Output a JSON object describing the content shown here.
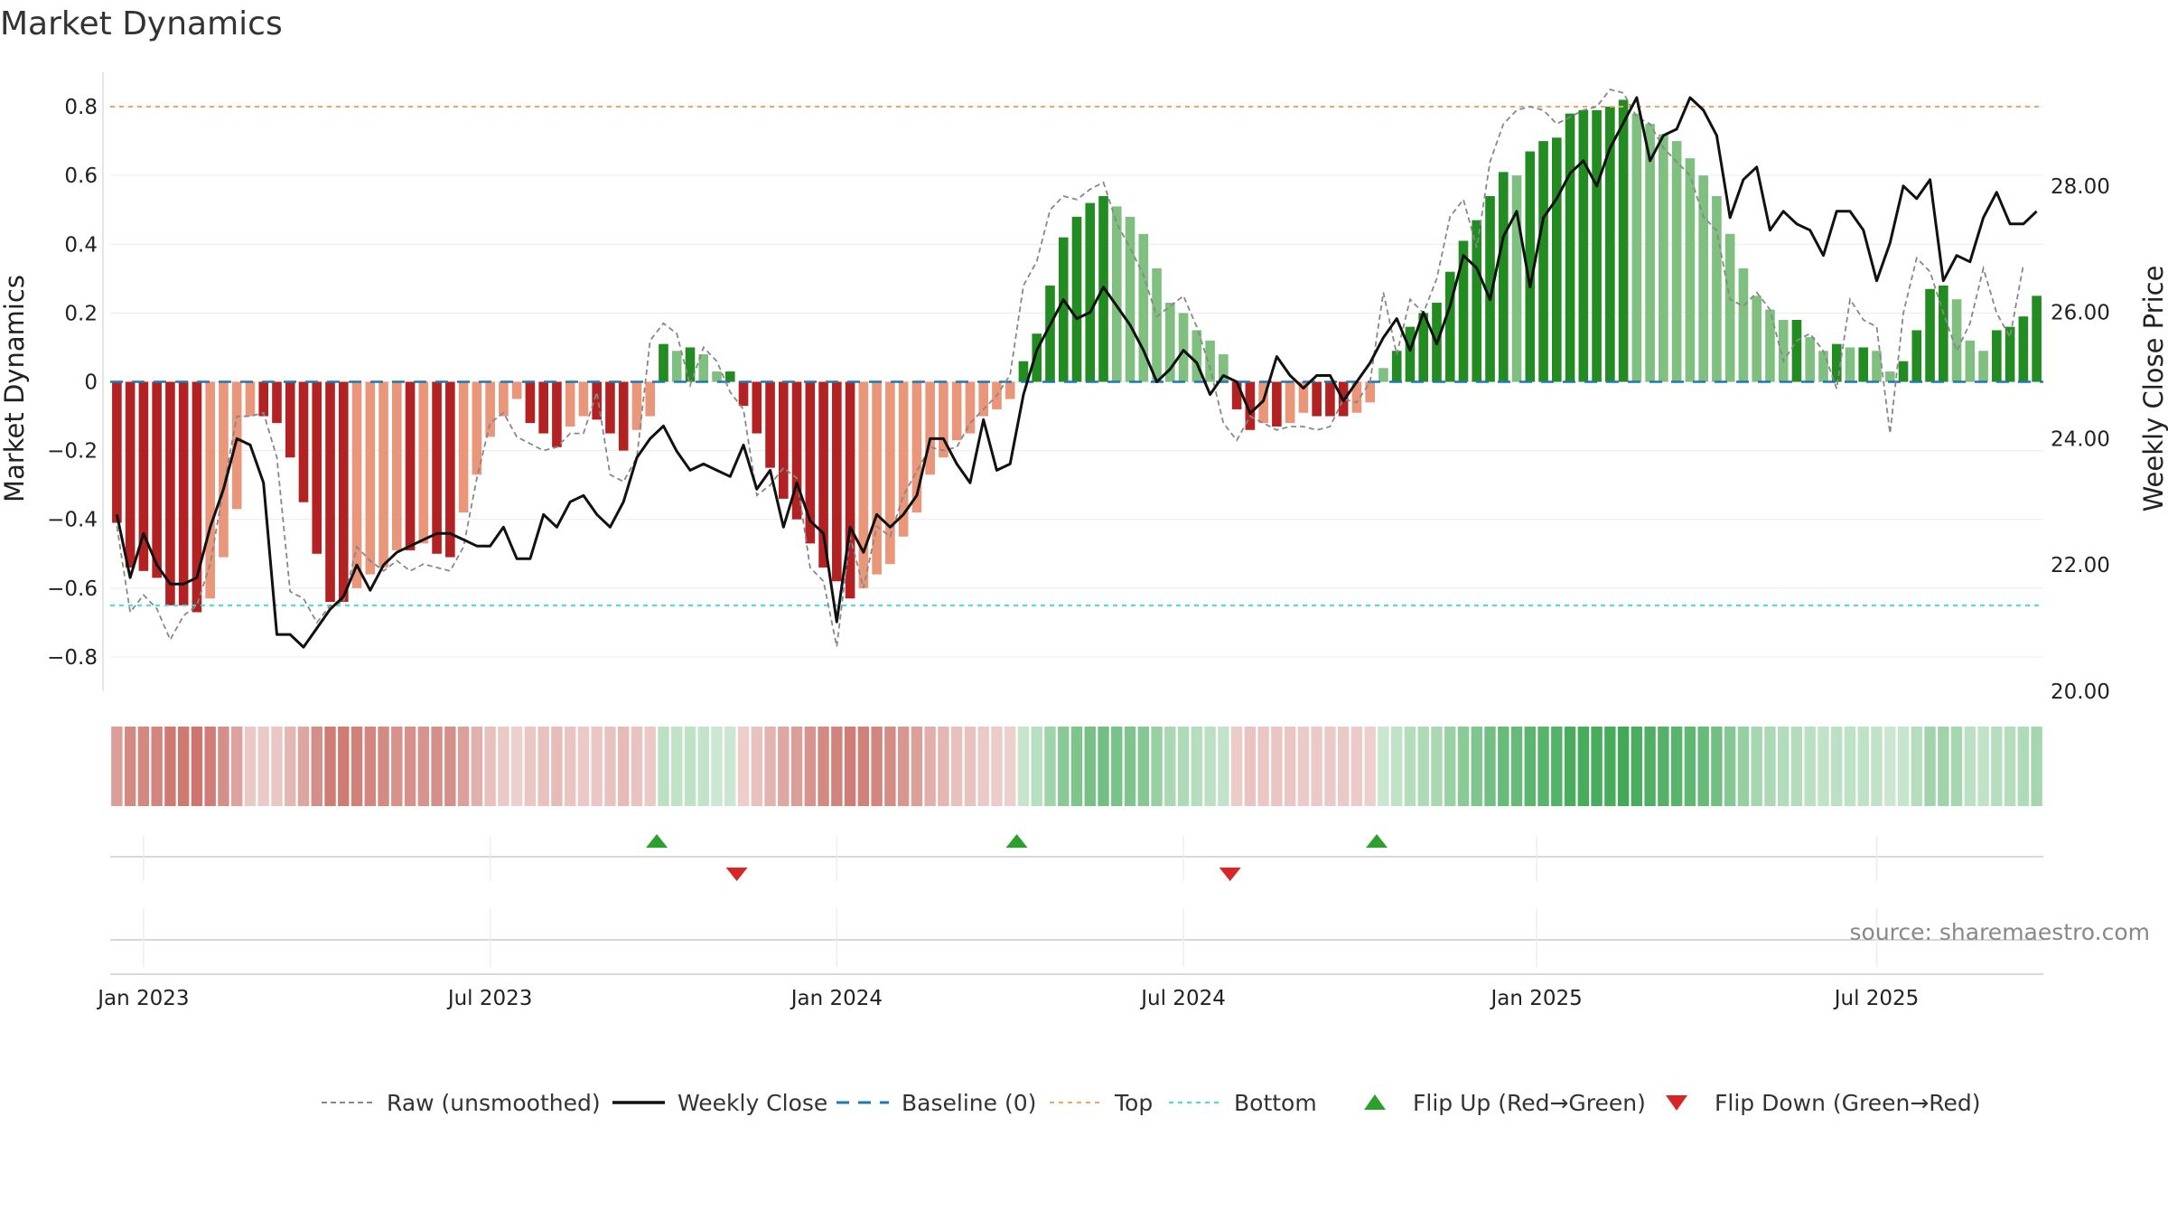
{
  "title": "Market Dynamics",
  "source": "source: sharemaestro.com",
  "chart_data": {
    "type": "bar",
    "title": "Market Dynamics",
    "ylabel_left": "Market Dynamics",
    "ylabel_right": "Weekly Close Price",
    "ylim_left": [
      -0.9,
      0.9
    ],
    "ylim_right": [
      20.0,
      29.8
    ],
    "y_ticks_left": [
      {
        "v": 0.8,
        "label": "0.8"
      },
      {
        "v": 0.6,
        "label": "0.6"
      },
      {
        "v": 0.4,
        "label": "0.4"
      },
      {
        "v": 0.2,
        "label": "0.2"
      },
      {
        "v": 0,
        "label": "0"
      },
      {
        "v": -0.2,
        "label": "−0.2"
      },
      {
        "v": -0.4,
        "label": "−0.4"
      },
      {
        "v": -0.6,
        "label": "−0.6"
      },
      {
        "v": -0.8,
        "label": "−0.8"
      }
    ],
    "y_ticks_right": [
      {
        "v": 28,
        "label": "28.00"
      },
      {
        "v": 26,
        "label": "26.00"
      },
      {
        "v": 24,
        "label": "24.00"
      },
      {
        "v": 22,
        "label": "22.00"
      },
      {
        "v": 20,
        "label": "20.00"
      }
    ],
    "x_ticks": [
      {
        "w": 2.5,
        "label": "Jan 2023"
      },
      {
        "w": 28.5,
        "label": "Jul 2023"
      },
      {
        "w": 54.5,
        "label": "Jan 2024"
      },
      {
        "w": 80.5,
        "label": "Jul 2024"
      },
      {
        "w": 107,
        "label": "Jan 2025"
      },
      {
        "w": 132.5,
        "label": "Jul 2025"
      }
    ],
    "week_start": "2023-01-02",
    "top_line": 0.8,
    "bottom_line": -0.65,
    "baseline": 0,
    "market_dynamics": [
      -0.41,
      -0.54,
      -0.55,
      -0.57,
      -0.65,
      -0.65,
      -0.67,
      -0.63,
      -0.51,
      -0.37,
      -0.1,
      -0.1,
      -0.12,
      -0.22,
      -0.35,
      -0.5,
      -0.64,
      -0.64,
      -0.6,
      -0.56,
      -0.54,
      -0.49,
      -0.49,
      -0.47,
      -0.5,
      -0.51,
      -0.38,
      -0.27,
      -0.16,
      -0.1,
      -0.05,
      -0.12,
      -0.15,
      -0.19,
      -0.13,
      -0.1,
      -0.11,
      -0.15,
      -0.2,
      -0.14,
      -0.1,
      0.11,
      0.09,
      0.1,
      0.08,
      0.03,
      0.03,
      -0.07,
      -0.15,
      -0.25,
      -0.34,
      -0.4,
      -0.47,
      -0.54,
      -0.58,
      -0.63,
      -0.6,
      -0.56,
      -0.53,
      -0.45,
      -0.38,
      -0.27,
      -0.22,
      -0.17,
      -0.15,
      -0.1,
      -0.08,
      -0.05,
      0.06,
      0.14,
      0.28,
      0.42,
      0.48,
      0.52,
      0.54,
      0.51,
      0.48,
      0.43,
      0.33,
      0.23,
      0.2,
      0.15,
      0.12,
      0.08,
      -0.08,
      -0.14,
      -0.12,
      -0.13,
      -0.12,
      -0.09,
      -0.1,
      -0.1,
      -0.1,
      -0.09,
      -0.06,
      0.04,
      0.09,
      0.16,
      0.2,
      0.23,
      0.32,
      0.41,
      0.47,
      0.54,
      0.61,
      0.6,
      0.67,
      0.7,
      0.71,
      0.78,
      0.79,
      0.79,
      0.8,
      0.82,
      0.78,
      0.75,
      0.72,
      0.7,
      0.65,
      0.6,
      0.54,
      0.43,
      0.33,
      0.25,
      0.21,
      0.18,
      0.18,
      0.13,
      0.09,
      0.11,
      0.1,
      0.1,
      0.09,
      0.03,
      0.06,
      0.15,
      0.27,
      0.28,
      0.24,
      0.12,
      0.09,
      0.15,
      0.16,
      0.19,
      0.25
    ],
    "raw_unsmoothed": [
      -0.42,
      -0.67,
      -0.62,
      -0.66,
      -0.75,
      -0.68,
      -0.65,
      -0.53,
      -0.31,
      -0.1,
      -0.1,
      -0.09,
      -0.22,
      -0.61,
      -0.63,
      -0.7,
      -0.65,
      -0.64,
      -0.48,
      -0.52,
      -0.55,
      -0.52,
      -0.55,
      -0.53,
      -0.54,
      -0.55,
      -0.48,
      -0.28,
      -0.12,
      -0.09,
      -0.16,
      -0.18,
      -0.2,
      -0.19,
      -0.15,
      -0.15,
      -0.03,
      -0.27,
      -0.29,
      -0.22,
      0.12,
      0.17,
      0.14,
      -0.01,
      0.1,
      0.06,
      -0.03,
      -0.08,
      -0.33,
      -0.3,
      -0.25,
      -0.28,
      -0.54,
      -0.58,
      -0.77,
      -0.45,
      -0.6,
      -0.42,
      -0.45,
      -0.33,
      -0.26,
      -0.19,
      -0.2,
      -0.19,
      -0.12,
      -0.08,
      -0.04,
      0.02,
      0.28,
      0.35,
      0.5,
      0.54,
      0.53,
      0.56,
      0.58,
      0.46,
      0.39,
      0.31,
      0.19,
      0.22,
      0.25,
      0.16,
      0.04,
      -0.12,
      -0.17,
      -0.1,
      -0.12,
      -0.14,
      -0.13,
      -0.13,
      -0.14,
      -0.13,
      -0.05,
      -0.06,
      0.0,
      0.26,
      0.08,
      0.24,
      0.2,
      0.3,
      0.48,
      0.53,
      0.39,
      0.64,
      0.75,
      0.79,
      0.8,
      0.79,
      0.75,
      0.77,
      0.79,
      0.8,
      0.85,
      0.84,
      0.77,
      0.75,
      0.68,
      0.64,
      0.6,
      0.48,
      0.44,
      0.24,
      0.22,
      0.26,
      0.21,
      0.06,
      0.12,
      0.14,
      0.09,
      -0.02,
      0.24,
      0.18,
      0.16,
      -0.15,
      0.2,
      0.36,
      0.32,
      0.2,
      0.09,
      0.17,
      0.33,
      0.2,
      0.13,
      0.34
    ],
    "weekly_close": [
      22.8,
      21.8,
      22.5,
      22.0,
      21.7,
      21.7,
      21.8,
      22.6,
      23.2,
      24.0,
      23.9,
      23.3,
      20.9,
      20.9,
      20.7,
      21.0,
      21.3,
      21.5,
      22.0,
      21.6,
      22.0,
      22.2,
      22.3,
      22.4,
      22.5,
      22.5,
      22.4,
      22.3,
      22.3,
      22.6,
      22.1,
      22.1,
      22.8,
      22.6,
      23.0,
      23.1,
      22.8,
      22.6,
      23.0,
      23.7,
      24.0,
      24.2,
      23.8,
      23.5,
      23.6,
      23.5,
      23.4,
      23.9,
      23.2,
      23.5,
      22.6,
      23.3,
      22.7,
      22.5,
      21.1,
      22.6,
      22.2,
      22.8,
      22.6,
      22.8,
      23.1,
      24.0,
      24.0,
      23.6,
      23.3,
      24.3,
      23.5,
      23.6,
      24.7,
      25.4,
      25.8,
      26.2,
      25.9,
      26.0,
      26.4,
      26.1,
      25.8,
      25.4,
      24.9,
      25.1,
      25.4,
      25.2,
      24.7,
      25.0,
      24.9,
      24.4,
      24.6,
      25.3,
      25.0,
      24.8,
      25.0,
      25.0,
      24.6,
      24.9,
      25.2,
      25.6,
      25.9,
      25.4,
      26.0,
      25.5,
      26.1,
      26.9,
      26.7,
      26.2,
      27.2,
      27.6,
      26.4,
      27.5,
      27.8,
      28.2,
      28.4,
      28.0,
      28.6,
      29.0,
      29.4,
      28.4,
      28.8,
      28.9,
      29.4,
      29.2,
      28.8,
      27.5,
      28.1,
      28.3,
      27.3,
      27.6,
      27.4,
      27.3,
      26.9,
      27.6,
      27.6,
      27.3,
      26.5,
      27.1,
      28.0,
      27.8,
      28.1,
      26.5,
      26.9,
      26.8,
      27.5,
      27.9,
      27.4,
      27.4,
      27.6
    ]
  },
  "legend": [
    {
      "key": "raw",
      "label": "Raw (unsmoothed)"
    },
    {
      "key": "close",
      "label": "Weekly Close"
    },
    {
      "key": "baseline",
      "label": "Baseline (0)"
    },
    {
      "key": "top",
      "label": "Top"
    },
    {
      "key": "bottom",
      "label": "Bottom"
    },
    {
      "key": "flipup",
      "label": "Flip Up (Red→Green)"
    },
    {
      "key": "flipdown",
      "label": "Flip Down (Green→Red)"
    }
  ],
  "colors": {
    "green_strong": "#228b22",
    "green_light": "#7fbf7f",
    "red_strong": "#b22222",
    "red_light": "#e9967a",
    "top_line": "#f4a460",
    "bottom_line": "#40e0d0",
    "baseline": "#1f77b4",
    "close": "#111111",
    "raw": "#888888",
    "flip_up": "#2ca02c",
    "flip_down": "#d62728"
  }
}
